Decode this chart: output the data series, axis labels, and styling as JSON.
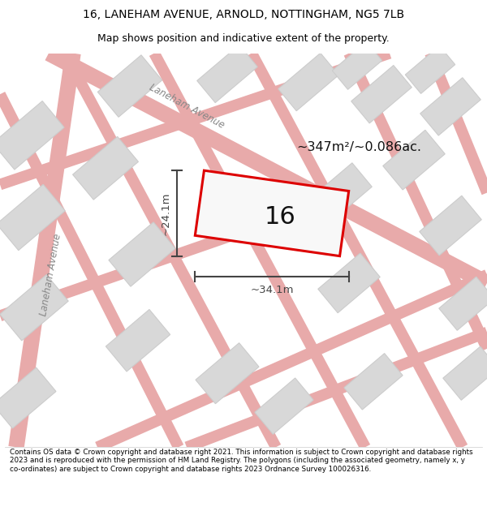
{
  "title_line1": "16, LANEHAM AVENUE, ARNOLD, NOTTINGHAM, NG5 7LB",
  "title_line2": "Map shows position and indicative extent of the property.",
  "footer": "Contains OS data © Crown copyright and database right 2021. This information is subject to Crown copyright and database rights 2023 and is reproduced with the permission of HM Land Registry. The polygons (including the associated geometry, namely x, y co-ordinates) are subject to Crown copyright and database rights 2023 Ordnance Survey 100026316.",
  "map_bg": "#f5f5f5",
  "road_color": "#e8aaaa",
  "building_fill": "#d8d8d8",
  "building_edge": "#cccccc",
  "highlight_fill": "#f8f8f8",
  "highlight_edge": "#dd0000",
  "highlight_label": "16",
  "dim_color": "#444444",
  "area_label": "~347m²/~0.086ac.",
  "width_label": "~34.1m",
  "height_label": "~24.1m",
  "road_label_1": "Laneham Avenue",
  "road_label_2": "Laneham Avenue",
  "title_fontsize": 10,
  "subtitle_fontsize": 9,
  "footer_fontsize": 6.3
}
